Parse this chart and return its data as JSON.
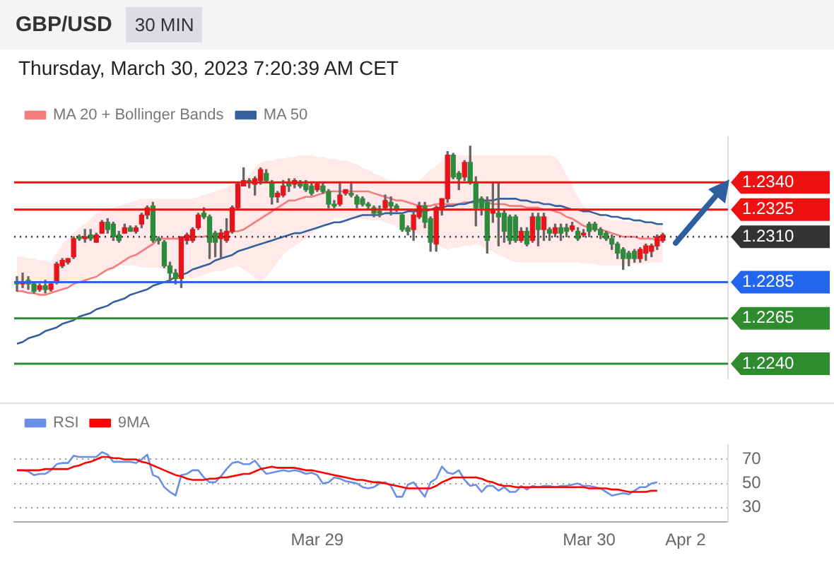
{
  "chart_data": [
    {
      "type": "candlestick",
      "title": "GBP/USD",
      "subtitle": "Thursday, March 30, 2023 7:20:39 AM CET",
      "annotations": [
        "30 MIN"
      ],
      "categories": [
        null,
        null,
        null,
        null,
        null,
        null,
        null,
        null,
        null,
        null,
        null,
        null,
        null,
        null,
        null,
        null,
        null,
        null,
        null,
        null,
        null,
        null,
        null,
        null,
        null,
        null,
        null,
        null,
        null,
        null,
        null,
        null,
        null,
        null,
        null,
        null,
        null,
        null,
        null,
        null,
        null,
        null,
        null,
        null,
        null,
        null,
        null,
        null,
        null,
        null,
        null,
        null,
        null,
        null,
        null,
        null,
        null,
        null,
        null,
        null,
        null,
        null,
        null,
        null,
        null,
        null,
        null,
        null,
        null,
        null,
        null,
        null,
        null,
        null,
        null,
        null,
        null,
        null,
        null,
        null,
        null,
        null,
        null,
        null,
        null,
        null,
        null,
        null,
        null,
        null,
        null,
        null,
        null,
        null,
        null,
        null,
        null,
        null,
        null,
        null,
        null,
        null,
        null,
        null,
        null,
        null,
        null,
        null,
        null,
        null,
        null,
        null,
        null,
        null,
        null,
        null,
        null,
        null,
        null,
        null,
        null,
        null,
        null,
        null,
        null,
        null
      ],
      "ylim": [
        1.2232,
        1.2365
      ],
      "yticks": [
        {
          "value": 1.224,
          "label": "1.2240"
        },
        {
          "value": 1.2265,
          "label": "1.2265"
        },
        {
          "value": 1.2285,
          "label": "1.2285"
        },
        {
          "value": 1.231,
          "label": "1.2310"
        },
        {
          "value": 1.2325,
          "label": "1.2325"
        },
        {
          "value": 1.234,
          "label": "1.2340"
        }
      ],
      "tick_labels": "y",
      "legend": "top left",
      "ohlc": [
        [
          1.2285,
          1.2288,
          1.228,
          1.2284
        ],
        [
          1.2284,
          1.229,
          1.2282,
          1.2285
        ],
        [
          1.2286,
          1.2288,
          1.2281,
          1.2284
        ],
        [
          1.2284,
          1.2285,
          1.2279,
          1.228
        ],
        [
          1.2281,
          1.2284,
          1.228,
          1.2283
        ],
        [
          1.2283,
          1.2286,
          1.2279,
          1.2281
        ],
        [
          1.2281,
          1.2285,
          1.228,
          1.2284
        ],
        [
          1.2285,
          1.2296,
          1.2284,
          1.2295
        ],
        [
          1.2294,
          1.2298,
          1.2293,
          1.2297
        ],
        [
          1.2296,
          1.2298,
          1.2295,
          1.2298
        ],
        [
          1.2299,
          1.231,
          1.2298,
          1.2309
        ],
        [
          1.231,
          1.2311,
          1.2308,
          1.2309
        ],
        [
          1.2309,
          1.2314,
          1.2307,
          1.231
        ],
        [
          1.2311,
          1.2314,
          1.2308,
          1.2309
        ],
        [
          1.2307,
          1.2312,
          1.2307,
          1.2311
        ],
        [
          1.2312,
          1.2319,
          1.2312,
          1.2318
        ],
        [
          1.2318,
          1.232,
          1.2312,
          1.2314
        ],
        [
          1.2317,
          1.2318,
          1.2308,
          1.231
        ],
        [
          1.2311,
          1.2313,
          1.2307,
          1.2308
        ],
        [
          1.2312,
          1.2317,
          1.2312,
          1.2315
        ],
        [
          1.2315,
          1.2316,
          1.2313,
          1.2313
        ],
        [
          1.2313,
          1.2316,
          1.2312,
          1.2315
        ],
        [
          1.2317,
          1.2323,
          1.2315,
          1.2322
        ],
        [
          1.2322,
          1.2327,
          1.232,
          1.2326
        ],
        [
          1.2327,
          1.2329,
          1.2307,
          1.2308
        ],
        [
          1.2309,
          1.231,
          1.2306,
          1.2308
        ],
        [
          1.2307,
          1.2308,
          1.2293,
          1.2294
        ],
        [
          1.2294,
          1.2296,
          1.2285,
          1.229
        ],
        [
          1.229,
          1.2292,
          1.2284,
          1.2287
        ],
        [
          1.2287,
          1.231,
          1.2282,
          1.231
        ],
        [
          1.2308,
          1.2312,
          1.2306,
          1.2311
        ],
        [
          1.2308,
          1.2315,
          1.2307,
          1.2314
        ],
        [
          1.2315,
          1.2323,
          1.2314,
          1.2322
        ],
        [
          1.2323,
          1.2326,
          1.232,
          1.2321
        ],
        [
          1.2321,
          1.2322,
          1.2298,
          1.2307
        ],
        [
          1.2312,
          1.2313,
          1.2299,
          1.2307
        ],
        [
          1.2309,
          1.2314,
          1.2298,
          1.2312
        ],
        [
          1.2308,
          1.232,
          1.2307,
          1.2313
        ],
        [
          1.2313,
          1.2327,
          1.2312,
          1.2326
        ],
        [
          1.2326,
          1.234,
          1.2325,
          1.2339
        ],
        [
          1.2338,
          1.2348,
          1.2338,
          1.2341
        ],
        [
          1.2341,
          1.2342,
          1.2337,
          1.234
        ],
        [
          1.2339,
          1.2343,
          1.2333,
          1.2342
        ],
        [
          1.2341,
          1.2348,
          1.2339,
          1.2347
        ],
        [
          1.2345,
          1.2347,
          1.234,
          1.2341
        ],
        [
          1.234,
          1.2341,
          1.2328,
          1.2332
        ],
        [
          1.2332,
          1.2335,
          1.2329,
          1.2334
        ],
        [
          1.2333,
          1.2341,
          1.2332,
          1.2338
        ],
        [
          1.234,
          1.2342,
          1.2335,
          1.2338
        ],
        [
          1.2339,
          1.2342,
          1.2337,
          1.2341
        ],
        [
          1.234,
          1.2341,
          1.2337,
          1.2338
        ],
        [
          1.2339,
          1.2341,
          1.2335,
          1.2336
        ],
        [
          1.2338,
          1.234,
          1.2333,
          1.2334
        ],
        [
          1.2336,
          1.234,
          1.2335,
          1.2339
        ],
        [
          1.2338,
          1.234,
          1.2334,
          1.2335
        ],
        [
          1.2335,
          1.2336,
          1.2326,
          1.2328
        ],
        [
          1.2328,
          1.233,
          1.2326,
          1.2327
        ],
        [
          1.2328,
          1.234,
          1.2327,
          1.2333
        ],
        [
          1.2334,
          1.2336,
          1.2333,
          1.2336
        ],
        [
          1.2334,
          1.234,
          1.2332,
          1.2333
        ],
        [
          1.2332,
          1.2333,
          1.2326,
          1.2328
        ],
        [
          1.2331,
          1.2332,
          1.2327,
          1.2328
        ],
        [
          1.2328,
          1.2329,
          1.2325,
          1.2327
        ],
        [
          1.2326,
          1.2327,
          1.2321,
          1.2323
        ],
        [
          1.2324,
          1.2327,
          1.2321,
          1.2323
        ],
        [
          1.2326,
          1.2333,
          1.2325,
          1.233
        ],
        [
          1.2329,
          1.2332,
          1.2322,
          1.2327
        ],
        [
          1.2327,
          1.2328,
          1.2324,
          1.2325
        ],
        [
          1.2322,
          1.2323,
          1.2313,
          1.2314
        ],
        [
          1.2315,
          1.2316,
          1.2311,
          1.2313
        ],
        [
          1.2314,
          1.2325,
          1.2308,
          1.2322
        ],
        [
          1.2321,
          1.2329,
          1.232,
          1.2327
        ],
        [
          1.2327,
          1.2329,
          1.2315,
          1.2318
        ],
        [
          1.232,
          1.2321,
          1.2302,
          1.2307
        ],
        [
          1.2306,
          1.2327,
          1.2302,
          1.2326
        ],
        [
          1.2325,
          1.2331,
          1.2322,
          1.2331
        ],
        [
          1.2331,
          1.2357,
          1.2329,
          1.2355
        ],
        [
          1.2355,
          1.2356,
          1.2342,
          1.2343
        ],
        [
          1.2345,
          1.2346,
          1.2336,
          1.2342
        ],
        [
          1.2343,
          1.2352,
          1.2341,
          1.2351
        ],
        [
          1.2351,
          1.236,
          1.2339,
          1.234
        ],
        [
          1.234,
          1.2343,
          1.2316,
          1.2326
        ],
        [
          1.2331,
          1.2332,
          1.2322,
          1.2326
        ],
        [
          1.2329,
          1.2332,
          1.2301,
          1.2308
        ],
        [
          1.2323,
          1.234,
          1.2318,
          1.2325
        ],
        [
          1.2323,
          1.234,
          1.2305,
          1.2321
        ],
        [
          1.2323,
          1.2325,
          1.2307,
          1.2313
        ],
        [
          1.2321,
          1.2322,
          1.2306,
          1.2308
        ],
        [
          1.2321,
          1.2322,
          1.2307,
          1.2308
        ],
        [
          1.2308,
          1.2315,
          1.2307,
          1.2313
        ],
        [
          1.2313,
          1.2315,
          1.2305,
          1.2306
        ],
        [
          1.2308,
          1.2323,
          1.2307,
          1.2321
        ],
        [
          1.2321,
          1.2323,
          1.2305,
          1.2314
        ],
        [
          1.2314,
          1.2323,
          1.2308,
          1.2321
        ],
        [
          1.2314,
          1.2315,
          1.2308,
          1.2312
        ],
        [
          1.2312,
          1.2317,
          1.231,
          1.2315
        ],
        [
          1.2315,
          1.2317,
          1.2308,
          1.2312
        ],
        [
          1.2315,
          1.2317,
          1.231,
          1.2313
        ],
        [
          1.2314,
          1.2318,
          1.2313,
          1.2316
        ],
        [
          1.2313,
          1.2315,
          1.2308,
          1.2309
        ],
        [
          1.2311,
          1.2314,
          1.231,
          1.2312
        ],
        [
          1.2317,
          1.2318,
          1.231,
          1.2313
        ],
        [
          1.2317,
          1.2318,
          1.2313,
          1.2314
        ],
        [
          1.2314,
          1.2315,
          1.2309,
          1.2311
        ],
        [
          1.2312,
          1.2313,
          1.2308,
          1.2309
        ],
        [
          1.2309,
          1.2311,
          1.2303,
          1.2306
        ],
        [
          1.2306,
          1.2307,
          1.2298,
          1.2301
        ],
        [
          1.2303,
          1.2304,
          1.2292,
          1.2298
        ],
        [
          1.2301,
          1.2302,
          1.2294,
          1.2298
        ],
        [
          1.2302,
          1.2303,
          1.2296,
          1.2298
        ],
        [
          1.2298,
          1.2304,
          1.2296,
          1.2303
        ],
        [
          1.2301,
          1.2306,
          1.2297,
          1.2305
        ],
        [
          1.2302,
          1.2306,
          1.2299,
          1.2305
        ],
        [
          1.2305,
          1.2311,
          1.2303,
          1.231
        ],
        [
          1.2308,
          1.2312,
          1.2307,
          1.2311
        ],
        null,
        null,
        null,
        null,
        null,
        null,
        null,
        null,
        null,
        null,
        null
      ],
      "series": [
        {
          "type": "line",
          "name": "MA 20 + Bollinger Bands",
          "color": "#f47c7c",
          "values": [
            1.228,
            1.228,
            1.2279,
            1.2279,
            1.2278,
            1.2278,
            1.2279,
            1.228,
            1.2281,
            1.2282,
            1.2284,
            1.2285,
            1.2286,
            1.2287,
            1.2288,
            1.229,
            1.2292,
            1.2293,
            1.2295,
            1.2297,
            1.2299,
            1.23,
            1.2302,
            1.2304,
            1.2306,
            1.2309,
            1.2309,
            1.2309,
            1.2309,
            1.2309,
            1.231,
            1.231,
            1.231,
            1.231,
            1.2311,
            1.2311,
            1.2312,
            1.2312,
            1.2313,
            1.2313,
            1.2314,
            1.2316,
            1.2318,
            1.232,
            1.2322,
            1.2324,
            1.2326,
            1.2328,
            1.233,
            1.233,
            1.2331,
            1.2332,
            1.2332,
            1.2333,
            1.2334,
            1.2335,
            1.2335,
            1.2335,
            1.2335,
            1.2335,
            1.2335,
            1.2335,
            1.2335,
            1.2334,
            1.2333,
            1.2332,
            1.2331,
            1.233,
            1.233,
            1.2329,
            1.2328,
            1.2327,
            1.2327,
            1.2327,
            1.2328,
            1.2328,
            1.2328,
            1.2328,
            1.2328,
            1.2329,
            1.2329,
            1.2329,
            1.2329,
            1.2329,
            1.2328,
            1.2328,
            1.2328,
            1.2327,
            1.2327,
            1.2327,
            1.2326,
            1.2326,
            1.2326,
            1.2325,
            1.2325,
            1.2324,
            1.2323,
            1.2321,
            1.232,
            1.2318,
            1.2316,
            1.2315,
            1.2314,
            1.2314,
            1.2313,
            1.2312,
            1.2311,
            1.231,
            1.231,
            1.231,
            1.2309,
            1.2309,
            1.2309,
            1.2308,
            1.2308,
            null,
            null,
            null,
            null,
            null,
            null,
            null,
            null,
            null,
            null,
            null
          ],
          "upper": [
            1.2299,
            1.2299,
            1.2298,
            1.2298,
            1.2297,
            1.2297,
            1.2296,
            1.2301,
            1.2306,
            1.2309,
            1.2312,
            1.2315,
            1.2317,
            1.232,
            1.2323,
            1.2324,
            1.2325,
            1.2326,
            1.2327,
            1.2328,
            1.2329,
            1.233,
            1.2331,
            1.2331,
            1.2331,
            1.2331,
            1.2331,
            1.2331,
            1.2331,
            1.2331,
            1.2331,
            1.2331,
            1.2332,
            1.2333,
            1.2334,
            1.2335,
            1.2336,
            1.2337,
            1.2339,
            1.234,
            1.2341,
            1.2344,
            1.2348,
            1.2351,
            1.2352,
            1.2352,
            1.2353,
            1.2353,
            1.2354,
            1.2354,
            1.2355,
            1.2355,
            1.2355,
            1.2354,
            1.2354,
            1.2353,
            1.2353,
            1.2352,
            1.2352,
            1.2351,
            1.235,
            1.2348,
            1.2347,
            1.2345,
            1.2344,
            1.2342,
            1.2341,
            1.2341,
            1.2341,
            1.2341,
            1.2341,
            1.2341,
            1.2344,
            1.2347,
            1.2349,
            1.2352,
            1.2355,
            1.2355,
            1.2355,
            1.2355,
            1.2355,
            1.2355,
            1.2355,
            1.2355,
            1.2355,
            1.2355,
            1.2355,
            1.2355,
            1.2355,
            1.2355,
            1.2355,
            1.2355,
            1.2355,
            1.2355,
            1.2355,
            1.2354,
            1.235,
            1.2344,
            1.2338,
            1.2332,
            1.2327,
            1.2325,
            1.2323,
            1.2322,
            1.232,
            1.2319,
            1.2319,
            1.2319,
            1.2318,
            1.2318,
            1.2318,
            1.2318,
            1.2317,
            1.2317,
            1.2317,
            null,
            null,
            null,
            null,
            null,
            null,
            null,
            null,
            null,
            null,
            null
          ],
          "lower": [
            1.228,
            1.2279,
            1.2279,
            1.2278,
            1.2277,
            1.2278,
            1.2279,
            1.228,
            1.2281,
            1.2283,
            1.2284,
            1.2285,
            1.2286,
            1.2288,
            1.2289,
            1.229,
            1.2291,
            1.2292,
            1.2294,
            1.2294,
            1.2294,
            1.2294,
            1.2293,
            1.2293,
            1.2293,
            1.2293,
            1.2292,
            1.2291,
            1.229,
            1.2289,
            1.2288,
            1.2287,
            1.2288,
            1.2289,
            1.229,
            1.2291,
            1.2291,
            1.2292,
            1.2293,
            1.2294,
            1.2292,
            1.229,
            1.2287,
            1.2285,
            1.2288,
            1.2292,
            1.2296,
            1.23,
            1.2303,
            1.2305,
            1.2307,
            1.2309,
            1.2312,
            1.2314,
            1.2316,
            1.2318,
            1.232,
            1.232,
            1.232,
            1.232,
            1.232,
            1.232,
            1.2319,
            1.2319,
            1.2319,
            1.2318,
            1.2317,
            1.2316,
            1.2315,
            1.2313,
            1.2312,
            1.2311,
            1.231,
            1.2308,
            1.2306,
            1.2304,
            1.2303,
            1.2304,
            1.2304,
            1.2305,
            1.2305,
            1.2306,
            1.2305,
            1.2303,
            1.2302,
            1.23,
            1.2299,
            1.2297,
            1.2296,
            1.2296,
            1.2296,
            1.2296,
            1.2296,
            1.2296,
            1.2296,
            1.2296,
            1.2296,
            1.2296,
            1.2296,
            1.2296,
            1.2295,
            1.2295,
            1.2295,
            1.2294,
            1.2294,
            1.2294,
            1.2294,
            1.2294,
            1.2295,
            1.2295,
            1.2295,
            1.2295,
            1.2296,
            1.2296,
            1.2296,
            null,
            null,
            null,
            null,
            null,
            null,
            null,
            null,
            null,
            null,
            null
          ]
        },
        {
          "type": "line",
          "name": "MA 50",
          "color": "#34609e",
          "values": [
            1.2251,
            1.2252,
            1.2254,
            1.2255,
            1.2256,
            1.2258,
            1.2259,
            1.226,
            1.2262,
            1.2263,
            1.2264,
            1.2266,
            1.2267,
            1.2268,
            1.227,
            1.2271,
            1.2272,
            1.2274,
            1.2275,
            1.2276,
            1.2278,
            1.2279,
            1.228,
            1.2281,
            1.2283,
            1.2284,
            1.2285,
            1.2286,
            1.2288,
            1.2289,
            1.229,
            1.2292,
            1.2293,
            1.2294,
            1.2295,
            1.2297,
            1.2298,
            1.2299,
            1.23,
            1.2302,
            1.2303,
            1.2304,
            1.2305,
            1.2306,
            1.2307,
            1.2308,
            1.2309,
            1.231,
            1.2311,
            1.2312,
            1.2312,
            1.2313,
            1.2314,
            1.2315,
            1.2316,
            1.2317,
            1.2318,
            1.2318,
            1.2319,
            1.232,
            1.2321,
            1.2322,
            1.2322,
            1.2322,
            1.2322,
            1.2323,
            1.2323,
            1.2323,
            1.2323,
            1.2324,
            1.2324,
            1.2324,
            1.2324,
            1.2325,
            1.2326,
            1.2326,
            1.2327,
            1.2327,
            1.2328,
            1.2328,
            1.2329,
            1.233,
            1.233,
            1.233,
            1.233,
            1.2331,
            1.2331,
            1.2331,
            1.2331,
            1.233,
            1.233,
            1.2329,
            1.2329,
            1.2328,
            1.2328,
            1.2327,
            1.2327,
            1.2326,
            1.2325,
            1.2325,
            1.2324,
            1.2324,
            1.2323,
            1.2322,
            1.2322,
            1.2321,
            1.2321,
            1.232,
            1.232,
            1.2319,
            1.2319,
            1.2318,
            1.2318,
            1.2317,
            1.2317,
            null,
            null,
            null,
            null,
            null,
            null,
            null,
            null,
            null,
            null,
            null
          ]
        }
      ],
      "ref_lines": [
        {
          "axis": "y",
          "value": 1.234,
          "color": "#ee1111"
        },
        {
          "axis": "y",
          "value": 1.2325,
          "color": "#ee1111"
        },
        {
          "axis": "y",
          "value": 1.231,
          "color": "#333333",
          "line_style": "dotted"
        },
        {
          "axis": "y",
          "value": 1.2285,
          "color": "#2266ee"
        },
        {
          "axis": "y",
          "value": 1.2265,
          "color": "#2e8b2e"
        },
        {
          "axis": "y",
          "value": 1.224,
          "color": "#2e8b2e"
        }
      ]
    },
    {
      "type": "line",
      "categories": [
        null,
        null,
        null,
        null,
        null,
        null,
        null,
        null,
        null,
        null,
        null,
        null,
        null,
        null,
        null,
        null,
        null,
        null,
        null,
        null,
        null,
        null,
        null,
        null,
        null,
        null,
        null,
        null,
        null,
        null,
        null,
        null,
        null,
        null,
        null,
        null,
        null,
        null,
        null,
        null,
        null,
        null,
        null,
        null,
        null,
        null,
        null,
        null,
        null,
        null,
        null,
        null,
        null,
        "Mar 29",
        null,
        null,
        null,
        null,
        null,
        null,
        null,
        null,
        null,
        null,
        null,
        null,
        null,
        null,
        null,
        null,
        null,
        null,
        null,
        null,
        null,
        null,
        null,
        null,
        null,
        null,
        null,
        null,
        null,
        null,
        null,
        null,
        null,
        null,
        null,
        null,
        null,
        null,
        null,
        null,
        null,
        null,
        null,
        null,
        null,
        null,
        null,
        "Mar 30",
        null,
        null,
        null,
        null,
        null,
        null,
        null,
        null,
        null,
        null,
        null,
        null,
        null,
        null,
        null,
        null,
        "Apr 2",
        null,
        null,
        null,
        null,
        null,
        null,
        null
      ],
      "ylim": [
        18,
        82
      ],
      "yticks": [
        30,
        50,
        70
      ],
      "grid": "y",
      "legend": "top left",
      "series": [
        {
          "name": "RSI",
          "color": "#6a8fe6",
          "values": [
            61,
            61,
            60,
            57,
            58,
            58,
            61,
            66,
            67,
            67,
            73,
            72,
            72,
            72,
            72,
            76,
            74,
            68,
            68,
            68,
            68,
            67,
            70,
            74,
            57,
            55,
            47,
            43,
            40,
            57,
            58,
            61,
            61,
            55,
            51,
            51,
            56,
            62,
            67,
            68,
            66,
            66,
            69,
            63,
            58,
            59,
            60,
            61,
            60,
            61,
            60,
            58,
            59,
            57,
            50,
            51,
            55,
            54,
            52,
            51,
            50,
            47,
            46,
            47,
            50,
            51,
            48,
            39,
            39,
            49,
            51,
            45,
            39,
            51,
            54,
            64,
            59,
            58,
            61,
            53,
            48,
            49,
            43,
            48,
            48,
            44,
            47,
            43,
            43,
            48,
            45,
            48,
            47,
            48,
            48,
            47,
            48,
            48,
            49,
            50,
            48,
            48,
            47,
            46,
            43,
            40,
            41,
            42,
            41,
            44,
            47,
            47,
            50,
            51,
            null,
            null,
            null,
            null,
            null,
            null,
            null,
            null,
            null,
            null,
            null,
            null
          ]
        },
        {
          "name": "9MA",
          "color": "#ff0000",
          "values": [
            61,
            61,
            61,
            61,
            61,
            62,
            62,
            62,
            62,
            62,
            64,
            65,
            67,
            68,
            70,
            72,
            72,
            71,
            71,
            70,
            70,
            70,
            68,
            67,
            65,
            63,
            61,
            59,
            57,
            56,
            54,
            53,
            53,
            53,
            54,
            54,
            55,
            55,
            56,
            57,
            58,
            58,
            60,
            62,
            63,
            64,
            63,
            63,
            63,
            63,
            62,
            61,
            61,
            60,
            59,
            58,
            57,
            56,
            55,
            54,
            53,
            53,
            52,
            51,
            51,
            50,
            49,
            48,
            47,
            46,
            46,
            46,
            46,
            46,
            48,
            51,
            53,
            55,
            55,
            55,
            55,
            55,
            54,
            52,
            51,
            49,
            48,
            48,
            47,
            47,
            47,
            47,
            47,
            47,
            47,
            47,
            47,
            47,
            47,
            47,
            47,
            46,
            46,
            46,
            46,
            45,
            45,
            44,
            43,
            43,
            43,
            43,
            44,
            44,
            null,
            null,
            null,
            null,
            null,
            null,
            null,
            null,
            null,
            null,
            null,
            null
          ]
        }
      ]
    }
  ]
}
